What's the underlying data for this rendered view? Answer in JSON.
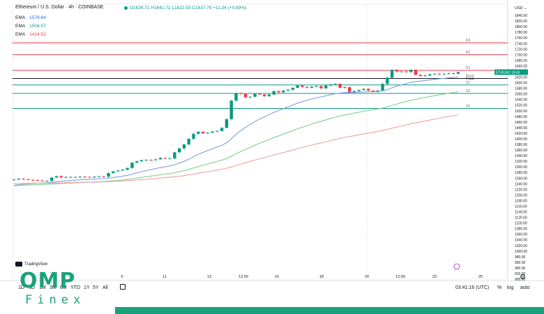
{
  "header": {
    "symbol": "Ethereum / U.S. Dollar · 4h · COINBASE",
    "ohlc": "O1626.71 H1641.72 L1622.53 C1637.79 +11.24 (+0.69%)",
    "currency": "USD"
  },
  "emas": [
    {
      "label": "EMA",
      "value": "1579.64",
      "color": "#2962ff"
    },
    {
      "label": "EMA",
      "value": "1504.57",
      "color": "#089981"
    },
    {
      "label": "EMA",
      "value": "1414.52",
      "color": "#f23645"
    }
  ],
  "price_tag": {
    "symbol": "ETHUSD",
    "time": "18:43"
  },
  "pivot_label": "Pivot",
  "toolbar": {
    "timeframes": [
      "1D",
      "5D",
      "1M",
      "3M",
      "6M",
      "YTD",
      "1Y",
      "5Y",
      "All"
    ],
    "time_utc": "03:41:16 (UTC)",
    "percent": "%",
    "log": "log",
    "auto": "auto"
  },
  "branding": {
    "tradingview": "TradingView",
    "logo_main": "OMP",
    "logo_sub": "Finex"
  },
  "colors": {
    "up": "#089981",
    "down": "#f23645",
    "ema_fast": "#7e9ee6",
    "ema_mid": "#7fd08a",
    "ema_slow": "#f0a0a0",
    "accent": "#1aa37a"
  },
  "chart_data": {
    "type": "candlestick",
    "title": "Ethereum / U.S. Dollar · 4h · COINBASE",
    "x_tick_labels": [
      "9",
      "11",
      "13",
      "12:00",
      "16",
      "18",
      "20",
      "12:00",
      "23",
      "25"
    ],
    "y_tick_labels": [
      "1860.00",
      "1840.00",
      "1820.00",
      "1800.00",
      "1780.00",
      "1760.00",
      "1740.00",
      "1720.00",
      "1700.00",
      "1680.00",
      "1660.00",
      "1640.00",
      "1620.00",
      "1600.00",
      "1580.00",
      "1560.00",
      "1540.00",
      "1520.00",
      "1500.00",
      "1480.00",
      "1460.00",
      "1440.00",
      "1420.00",
      "1400.00",
      "1380.00",
      "1360.00",
      "1340.00",
      "1320.00",
      "1300.00",
      "1280.00",
      "1260.00",
      "1240.00",
      "1220.00",
      "1200.00",
      "1180.00",
      "1160.00",
      "1140.00",
      "1120.00",
      "1100.00",
      "1080.00",
      "1060.00",
      "1040.00",
      "1020.00",
      "1000.00",
      "980.00",
      "960.00",
      "940.00",
      "920.00",
      "900.00"
    ],
    "ylim": [
      900,
      1880
    ],
    "closes": [
      1255,
      1258,
      1256,
      1254,
      1253,
      1252,
      1250,
      1250,
      1262,
      1267,
      1262,
      1264,
      1264,
      1264,
      1265,
      1264,
      1263,
      1265,
      1266,
      1265,
      1278,
      1284,
      1287,
      1290,
      1296,
      1315,
      1320,
      1324,
      1325,
      1324,
      1327,
      1332,
      1330,
      1330,
      1352,
      1366,
      1380,
      1400,
      1418,
      1425,
      1420,
      1422,
      1426,
      1428,
      1439,
      1470,
      1536,
      1563,
      1560,
      1548,
      1550,
      1560,
      1558,
      1552,
      1558,
      1570,
      1566,
      1572,
      1575,
      1582,
      1590,
      1585,
      1582,
      1586,
      1588,
      1580,
      1590,
      1594,
      1596,
      1582,
      1584,
      1564,
      1570,
      1574,
      1578,
      1572,
      1568,
      1572,
      1596,
      1618,
      1646,
      1640,
      1640,
      1638,
      1646,
      1628,
      1624,
      1626,
      1630,
      1632,
      1630,
      1632,
      1634,
      1632,
      1638
    ],
    "levels": [
      {
        "label": "R3",
        "value": 1742,
        "color": "#f23645"
      },
      {
        "label": "R2",
        "value": 1700,
        "color": "#f23645"
      },
      {
        "label": "R1",
        "value": 1644,
        "color": "#f23645"
      },
      {
        "label": "Pivot",
        "value": 1615,
        "color": "#131722"
      },
      {
        "label": "S1",
        "value": 1592,
        "color": "#089981"
      },
      {
        "label": "S2",
        "value": 1562,
        "color": "#089981"
      },
      {
        "label": "S3",
        "value": 1508,
        "color": "#089981"
      }
    ],
    "current_price": 1637.79
  }
}
